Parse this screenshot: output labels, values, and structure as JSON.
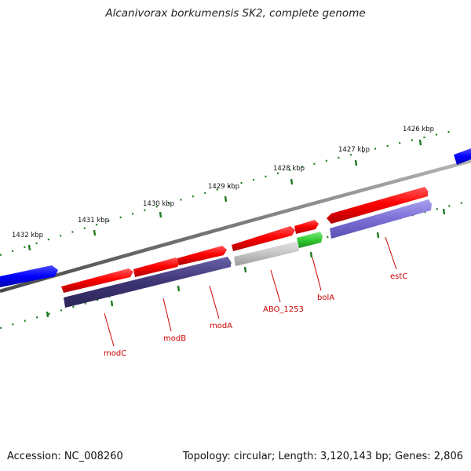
{
  "title": "Alcanivorax borkumensis SK2, complete genome",
  "footer": {
    "accession": "Accession: NC_008260",
    "summary": "Topology: circular; Length: 3,120,143 bp; Genes: 2,806"
  },
  "ruler": {
    "ticks": [
      "1432 kbp",
      "1431 kbp",
      "1430 kbp",
      "1429 kbp",
      "1428 kbp",
      "1427 kbp",
      "1426 kbp"
    ]
  },
  "genes": [
    {
      "label": "modC",
      "color": "#ff0000",
      "strand": "forward-track"
    },
    {
      "label": "modB",
      "color": "#ff0000",
      "strand": "forward-track"
    },
    {
      "label": "modA",
      "color": "#ff0000",
      "strand": "forward-track"
    },
    {
      "label": "ABO_1253",
      "color": "#ff0000",
      "strand": "forward-track"
    },
    {
      "label": "bolA",
      "color": "#ff0000",
      "strand": "forward-track"
    },
    {
      "label": "estC",
      "color": "#ff0000",
      "strand": "forward-track"
    }
  ],
  "colors": {
    "backbone": "#808080",
    "cds": "#ff0000",
    "outer_feature": "#0000ff",
    "inner_dark": "#3d3575",
    "inner_light": "#7b6fd6",
    "rna_green": "#33cc33",
    "grey_feature": "#bdbdbd",
    "tick_green": "#1f7a1f",
    "label_red": "#cc0000"
  }
}
